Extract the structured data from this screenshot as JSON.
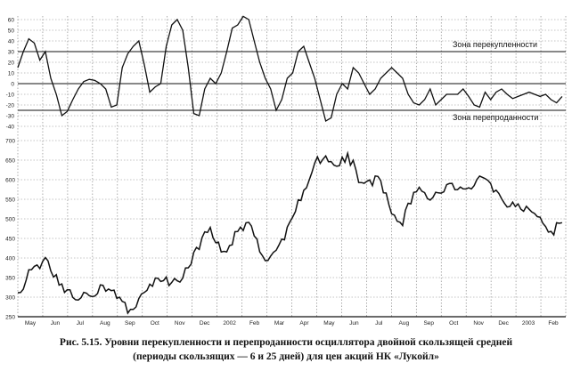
{
  "caption": {
    "line1": "Рис. 5.15. Уровни перекупленности и перепроданности осциллятора двойной скользящей средней",
    "line2": "(периоды скользящих — 6 и 25 дней) для цен акций НК «Лукойл»"
  },
  "chart_data": [
    {
      "type": "line",
      "name": "oscillator",
      "yticks": [
        60,
        50,
        40,
        30,
        20,
        10,
        0,
        -10,
        -20,
        -30,
        -40
      ],
      "ylim": [
        -45,
        65
      ],
      "grid": true,
      "reference_lines": [
        {
          "value": 30,
          "label": "Зона перекупленности"
        },
        {
          "value": 0,
          "label": ""
        },
        {
          "value": -25,
          "label": "Зона перепроданности"
        }
      ],
      "x": [
        0,
        3,
        6,
        9,
        12,
        15,
        18,
        21,
        24,
        27,
        30,
        33,
        36,
        39,
        42,
        45,
        48,
        51,
        54,
        57,
        60,
        63,
        66,
        69,
        72,
        75,
        78,
        81,
        84,
        87,
        90,
        93,
        96,
        99,
        102,
        105,
        108,
        111,
        114,
        117,
        120,
        123,
        126,
        129,
        132,
        135,
        138,
        141,
        144,
        147,
        150,
        153,
        156,
        159,
        162,
        165,
        168,
        171,
        174,
        177,
        180,
        183,
        186,
        189,
        192,
        195,
        198,
        201,
        204,
        207,
        210,
        213,
        216,
        219,
        222,
        225,
        228,
        231,
        234,
        237,
        240,
        243,
        246,
        249,
        252,
        255,
        258,
        261,
        264,
        267,
        270,
        273,
        276,
        279,
        282,
        285,
        288,
        291,
        294,
        297
      ],
      "values": [
        15,
        30,
        42,
        38,
        22,
        30,
        5,
        -10,
        -30,
        -26,
        -15,
        -5,
        2,
        4,
        3,
        0,
        -5,
        -22,
        -20,
        15,
        28,
        35,
        40,
        18,
        -8,
        -3,
        0,
        35,
        55,
        60,
        50,
        15,
        -28,
        -30,
        -5,
        5,
        0,
        10,
        30,
        52,
        55,
        63,
        60,
        40,
        20,
        5,
        -5,
        -25,
        -15,
        5,
        10,
        30,
        35,
        20,
        5,
        -15,
        -35,
        -32,
        -10,
        0,
        -5,
        15,
        10,
        0,
        -10,
        -5,
        5,
        10,
        15,
        10,
        5,
        -10,
        -18,
        -20,
        -15,
        -5,
        -20,
        -15,
        -10,
        -10,
        -10,
        -5,
        -12,
        -20,
        -22,
        -8,
        -15,
        -8,
        -5,
        -10,
        -14,
        -12,
        -10,
        -8,
        -10,
        -12,
        -10,
        -15,
        -18,
        -12
      ]
    },
    {
      "type": "line",
      "name": "price",
      "yticks": [
        700,
        650,
        600,
        550,
        500,
        450,
        400,
        350,
        300,
        250
      ],
      "ylim": [
        240,
        710
      ],
      "grid": true,
      "x_tick_labels": [
        "May",
        "Jun",
        "Jul",
        "Aug",
        "Sep",
        "Oct",
        "Nov",
        "Dec",
        "2002",
        "Feb",
        "Mar",
        "Apr",
        "May",
        "Jun",
        "Jul",
        "Aug",
        "Sep",
        "Oct",
        "Nov",
        "Dec",
        "2003",
        "Feb"
      ],
      "x": [
        0,
        3,
        6,
        9,
        12,
        15,
        18,
        21,
        24,
        27,
        30,
        33,
        36,
        39,
        42,
        45,
        48,
        51,
        54,
        57,
        60,
        63,
        66,
        69,
        72,
        75,
        78,
        81,
        84,
        87,
        90,
        93,
        96,
        99,
        102,
        105,
        108,
        111,
        114,
        117,
        120,
        123,
        126,
        129,
        132,
        135,
        138,
        141,
        144,
        147,
        150,
        153,
        156,
        159,
        162,
        165,
        168,
        171,
        174,
        177,
        180,
        183,
        186,
        189,
        192,
        195,
        198,
        201,
        204,
        207,
        210,
        213,
        216,
        219,
        222,
        225,
        228,
        231,
        234,
        237,
        240,
        243,
        246,
        249,
        252,
        255,
        258,
        261,
        264,
        267,
        270,
        273,
        276,
        279,
        282,
        285,
        288,
        291,
        294,
        297
      ],
      "values": [
        300,
        330,
        360,
        380,
        370,
        400,
        370,
        350,
        330,
        320,
        310,
        300,
        305,
        315,
        310,
        330,
        325,
        315,
        300,
        285,
        265,
        270,
        300,
        310,
        325,
        345,
        340,
        340,
        330,
        340,
        360,
        380,
        410,
        420,
        460,
        480,
        450,
        425,
        415,
        440,
        470,
        480,
        490,
        450,
        420,
        400,
        400,
        420,
        440,
        470,
        500,
        540,
        580,
        600,
        640,
        650,
        660,
        640,
        630,
        650,
        660,
        640,
        600,
        580,
        590,
        600,
        600,
        560,
        510,
        490,
        480,
        540,
        560,
        570,
        560,
        550,
        560,
        570,
        580,
        580,
        580,
        575,
        570,
        580,
        600,
        600,
        590,
        570,
        550,
        540,
        550,
        530,
        520,
        530,
        520,
        510,
        490,
        460,
        480,
        490
      ]
    }
  ]
}
